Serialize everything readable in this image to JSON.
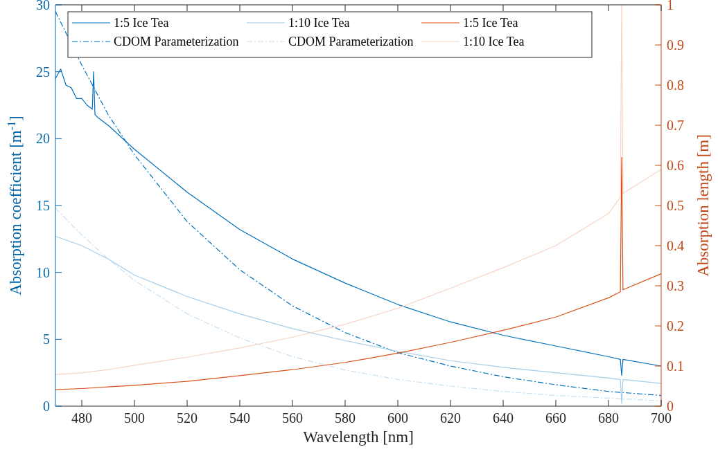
{
  "chart_data": {
    "type": "line",
    "xlabel": "Wavelength [nm]",
    "ylabel": "Absorption coefficient [m$^{-1}$]",
    "y2label": "Absorption length [m]",
    "xlim": [
      470,
      700
    ],
    "xticks": [
      480,
      500,
      520,
      540,
      560,
      580,
      600,
      620,
      640,
      660,
      680,
      700
    ],
    "ylim": [
      0,
      30
    ],
    "yticks": [
      0,
      5,
      10,
      15,
      20,
      25,
      30
    ],
    "y2lim": [
      0,
      1
    ],
    "y2ticks": [
      0,
      0.1,
      0.2,
      0.3,
      0.4,
      0.5,
      0.6,
      0.7,
      0.8,
      0.9,
      1
    ],
    "legend": "top",
    "grid": false,
    "series": [
      {
        "name": "1:5 Ice Tea",
        "color": "#0072bd",
        "line_style": "solid",
        "x": [
          470,
          472,
          474,
          476,
          478,
          480,
          482,
          484,
          484.5,
          485,
          486,
          490,
          500,
          520,
          540,
          560,
          580,
          600,
          620,
          640,
          660,
          680,
          684.5,
          685,
          685.5,
          700
        ],
        "values": [
          24.5,
          25.2,
          24,
          23.8,
          23,
          23,
          22.5,
          22.2,
          25,
          21.8,
          21.6,
          21,
          19.2,
          16,
          13.2,
          11,
          9.2,
          7.6,
          6.3,
          5.3,
          4.5,
          3.7,
          3.5,
          2.3,
          3.5,
          3.0
        ]
      },
      {
        "name": "CDOM Parameterization",
        "color": "#0072bd",
        "line_style": "dashed-dotted",
        "x": [
          470,
          480,
          490,
          500,
          520,
          540,
          560,
          580,
          600,
          620,
          640,
          660,
          680,
          700
        ],
        "values": [
          29.5,
          25.5,
          21.8,
          18.8,
          13.8,
          10.2,
          7.5,
          5.5,
          4.0,
          3.0,
          2.2,
          1.6,
          1.1,
          0.8
        ]
      },
      {
        "name": "1:10 Ice Tea",
        "color": "#a6cde8",
        "line_style": "solid",
        "x": [
          470,
          480,
          490,
          500,
          520,
          540,
          560,
          580,
          600,
          620,
          640,
          660,
          680,
          684.5,
          685,
          685.5,
          700
        ],
        "values": [
          12.7,
          12,
          11,
          9.8,
          8.2,
          6.9,
          5.8,
          4.9,
          4.1,
          3.4,
          2.9,
          2.5,
          2.1,
          2.0,
          0.2,
          2.0,
          1.7
        ]
      },
      {
        "name": "CDOM Parameterization",
        "color": "#c6e0f2",
        "line_style": "dashed-dotted",
        "x": [
          470,
          480,
          490,
          500,
          520,
          540,
          560,
          580,
          600,
          620,
          640,
          660,
          680,
          700
        ],
        "values": [
          14.8,
          12.8,
          11,
          9.4,
          6.9,
          5.1,
          3.7,
          2.7,
          2.0,
          1.5,
          1.1,
          0.8,
          0.6,
          0.4
        ]
      },
      {
        "name": "1:5 Ice Tea",
        "color": "#d95319",
        "line_style": "solid",
        "axis": "y2",
        "x": [
          470,
          480,
          490,
          500,
          520,
          540,
          560,
          580,
          600,
          620,
          640,
          660,
          680,
          684.5,
          685,
          685.5,
          700
        ],
        "values": [
          0.041,
          0.044,
          0.048,
          0.052,
          0.062,
          0.076,
          0.091,
          0.109,
          0.132,
          0.159,
          0.189,
          0.222,
          0.27,
          0.285,
          0.62,
          0.29,
          0.33
        ]
      },
      {
        "name": "1:10 Ice Tea",
        "color": "#f7d4c6",
        "line_style": "solid",
        "axis": "y2",
        "x": [
          470,
          480,
          490,
          500,
          520,
          540,
          560,
          580,
          600,
          620,
          640,
          660,
          680,
          684.5,
          685,
          685.5,
          700
        ],
        "values": [
          0.079,
          0.083,
          0.091,
          0.102,
          0.122,
          0.145,
          0.172,
          0.204,
          0.244,
          0.294,
          0.345,
          0.4,
          0.48,
          0.52,
          1.0,
          0.53,
          0.59
        ]
      }
    ]
  }
}
